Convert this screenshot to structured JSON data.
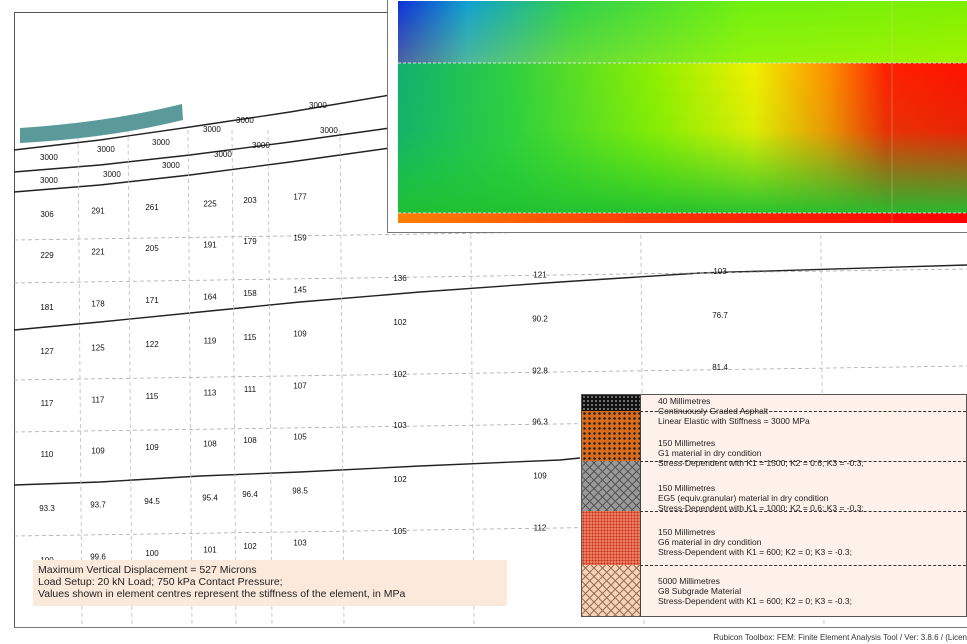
{
  "mesh": {
    "asphalt_row1": [
      3000,
      3000,
      3000,
      3000,
      3000,
      3000,
      3000
    ],
    "asphalt_row2": [
      3000,
      3000,
      3000,
      3000,
      3000,
      3000
    ],
    "rows": [
      [
        306,
        291,
        261,
        225,
        203,
        177
      ],
      [
        229,
        221,
        205,
        191,
        179,
        159
      ],
      [
        181,
        178,
        171,
        164,
        158,
        145,
        136,
        121,
        103
      ],
      [
        127,
        125,
        122,
        119,
        115,
        109,
        102,
        90.2,
        76.7
      ],
      [
        117,
        117,
        115,
        113,
        111,
        107,
        102,
        92.8,
        81.4
      ],
      [
        110,
        109,
        109,
        108,
        108,
        105,
        103,
        96.3
      ],
      [
        93.3,
        93.7,
        94.5,
        95.4,
        96.4,
        98.5,
        102,
        109
      ],
      [
        100,
        99.6,
        100,
        101,
        102,
        103,
        105,
        112
      ]
    ]
  },
  "info": {
    "line1": "Maximum Vertical Displacement = 527 Microns",
    "line2": "Load Setup: 20 kN Load; 750 kPa Contact Pressure;",
    "line3": "Values shown in element centres represent the stiffness of the element, in MPa"
  },
  "legend": {
    "layers": [
      {
        "thickness": "40 Millimetres",
        "material": "Continuously Graded Asphalt",
        "model": "Linear Elastic with Stiffness = 3000 MPa",
        "pattern": "asphalt"
      },
      {
        "thickness": "150 Millimetres",
        "material": "G1 material in dry condition",
        "model": "Stress-Dependent with K1 = 1500; K2 = 0.6; K3 = -0.3;",
        "pattern": "g1"
      },
      {
        "thickness": "150 Millimetres",
        "material": "EG5 (equiv.granular) material in dry condition",
        "model": "Stress-Dependent with K1 = 1000; K2 = 0.6; K3 = -0.3;",
        "pattern": "eg5"
      },
      {
        "thickness": "150 Millimetres",
        "material": "G6 material in dry condition",
        "model": "Stress-Dependent with K1 = 600; K2 = 0; K3 = -0.3;",
        "pattern": "g6"
      },
      {
        "thickness": "5000 Millimetres",
        "material": "G8 Subgrade Material",
        "model": "Stress-Dependent with K1 = 600; K2 = 0; K3 = -0.3;",
        "pattern": "g8"
      }
    ]
  },
  "footer": {
    "text": "Rubicon Toolbox: FEM: Finite Element Analysis Tool / Ver: 3.8.6 / (Licen"
  },
  "colors": {
    "deflected_surface": "#5b9a9a",
    "legend_bg": "#fdf1ea",
    "info_bg": "#fbeadc"
  }
}
